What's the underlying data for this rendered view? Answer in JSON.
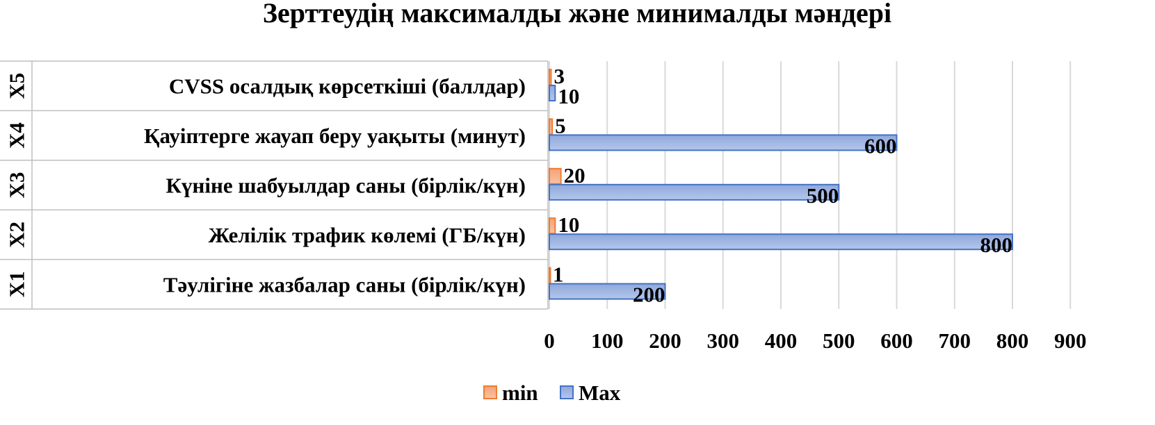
{
  "chart_data": {
    "type": "bar",
    "orientation": "horizontal",
    "title": "Зерттеудің максималды және минималды мәндері",
    "categories": [
      {
        "code": "X1",
        "label": "Тәулігіне жазбалар саны (бірлік/күн)"
      },
      {
        "code": "X2",
        "label": "Желілік трафик көлемі (ГБ/күн)"
      },
      {
        "code": "X3",
        "label": "Күніне шабуылдар саны (бірлік/күн)"
      },
      {
        "code": "X4",
        "label": "Қауіптерге жауап беру уақыты (минут)"
      },
      {
        "code": "X5",
        "label": "CVSS осалдық көрсеткіші (баллдар)"
      }
    ],
    "series": [
      {
        "name": "min",
        "values": [
          1,
          10,
          20,
          5,
          3
        ],
        "color": "#ed7d31"
      },
      {
        "name": "Max",
        "values": [
          200,
          800,
          500,
          600,
          10
        ],
        "color": "#4472c4"
      }
    ],
    "xlim": [
      0,
      900
    ],
    "xticks": [
      "0",
      "100",
      "200",
      "300",
      "400",
      "500",
      "600",
      "700",
      "800",
      "900"
    ],
    "grid": true,
    "legend_position": "bottom"
  }
}
